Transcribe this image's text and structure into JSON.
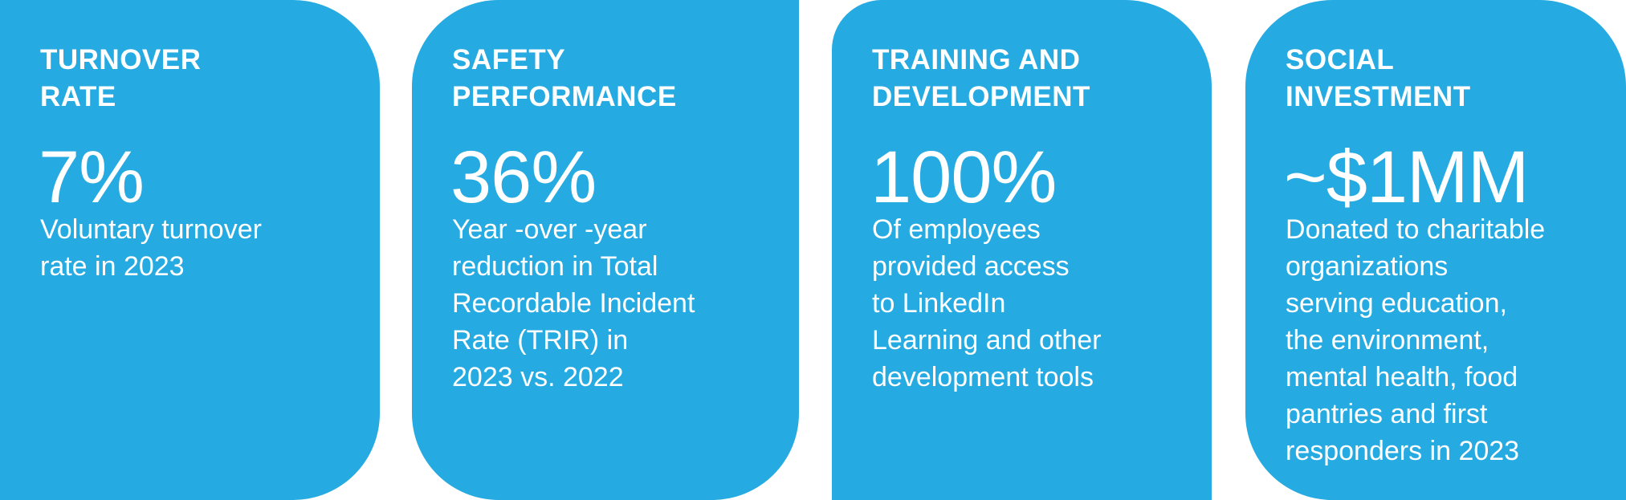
{
  "cards": [
    {
      "title": "TURNOVER\nRATE",
      "stat": "7%",
      "description": "Voluntary turnover\nrate in 2023"
    },
    {
      "title": "SAFETY\nPERFORMANCE",
      "stat": "36%",
      "description": "Year -over -year\nreduction in Total\nRecordable Incident\nRate (TRIR) in\n2023 vs. 2022"
    },
    {
      "title": "TRAINING AND\nDEVELOPMENT",
      "stat": "100%",
      "description": "Of employees\nprovided access\nto LinkedIn\nLearning and other\ndevelopment tools"
    },
    {
      "title": "SOCIAL\nINVESTMENT",
      "stat": "~$1MM",
      "description": "Donated to charitable\norganizations\nserving education,\nthe environment,\nmental health, food\npantries and first\nresponders in 2023"
    }
  ],
  "colors": {
    "card_background": "#25aae1",
    "text": "#ffffff",
    "page_background": "#ffffff"
  }
}
